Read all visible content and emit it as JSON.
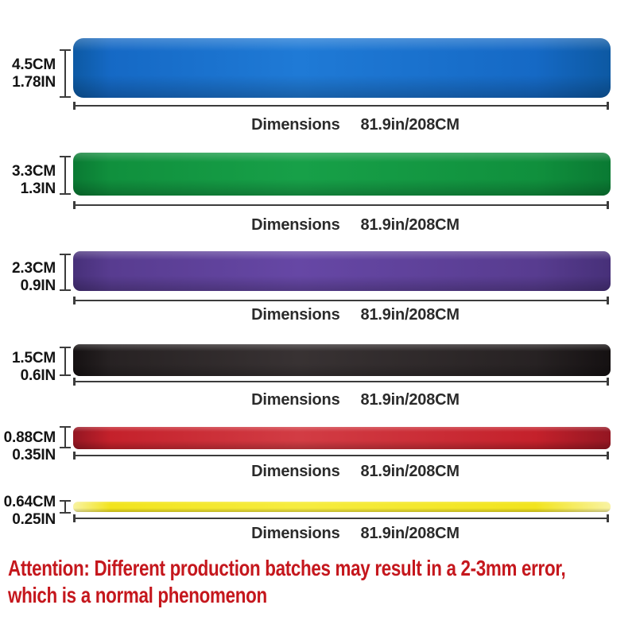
{
  "bands": [
    {
      "color_name": "blue",
      "width_cm": "4.5CM",
      "width_in": "1.78IN",
      "dimensions_label": "Dimensions",
      "length": "81.9in/208CM",
      "edge_color": "#0d59a3",
      "main_color": "#1569c5",
      "sheen_color": "#1f7ad6"
    },
    {
      "color_name": "green",
      "width_cm": "3.3CM",
      "width_in": "1.3IN",
      "dimensions_label": "Dimensions",
      "length": "81.9in/208CM",
      "edge_color": "#0a7a33",
      "main_color": "#10903d",
      "sheen_color": "#17a048"
    },
    {
      "color_name": "purple",
      "width_cm": "2.3CM",
      "width_in": "0.9IN",
      "dimensions_label": "Dimensions",
      "length": "81.9in/208CM",
      "edge_color": "#473079",
      "main_color": "#583c90",
      "sheen_color": "#6647a5"
    },
    {
      "color_name": "black",
      "width_cm": "1.5CM",
      "width_in": "0.6IN",
      "dimensions_label": "Dimensions",
      "length": "81.9in/208CM",
      "edge_color": "#151112",
      "main_color": "#272223",
      "sheen_color": "#383233"
    },
    {
      "color_name": "red",
      "width_cm": "0.88CM",
      "width_in": "0.35IN",
      "dimensions_label": "Dimensions",
      "length": "81.9in/208CM",
      "edge_color": "#941622",
      "main_color": "#c4212b",
      "sheen_color": "#d23c44"
    },
    {
      "color_name": "yellow",
      "width_cm": "0.64CM",
      "width_in": "0.25IN",
      "dimensions_label": "Dimensions",
      "length": "81.9in/208CM",
      "edge_color": "#f9f3a2",
      "main_color": "#f2e41d",
      "sheen_color": "#f6ec3f"
    }
  ],
  "attention": {
    "line1": "Attention: Different production batches may result in a 2-3mm error,",
    "line2": "which is a normal phenomenon",
    "color": "#c5171d"
  },
  "colors": {
    "background": "#ffffff",
    "measure_lines": "#3c3c3c",
    "caption_text": "#2b2b2b",
    "label_text": "#141414"
  }
}
